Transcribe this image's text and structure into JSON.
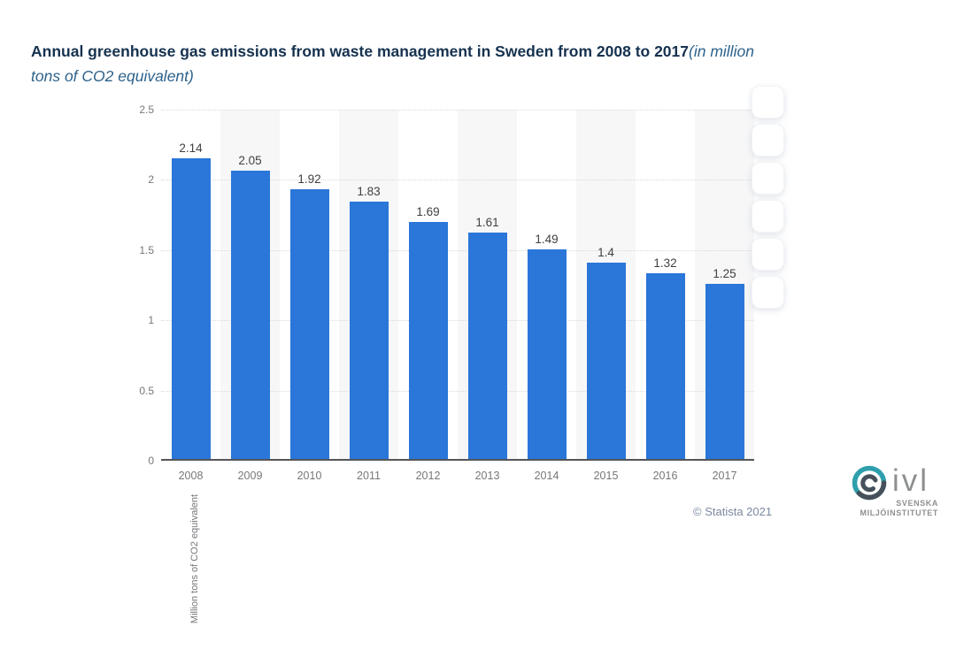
{
  "page": {
    "background": "#ffffff"
  },
  "title": {
    "bold": "Annual greenhouse gas emissions from waste management in Sweden from 2008 to 2017",
    "italic_part1": "(in million",
    "italic_part2": "tons of CO2 equivalent)",
    "italic_full": "(in million tons of CO2 equivalent)"
  },
  "chart_data": {
    "type": "bar",
    "title": "Annual greenhouse gas emissions from waste management in Sweden from 2008 to 2017 (in million tons of CO2 equivalent)",
    "categories": [
      "2008",
      "2009",
      "2010",
      "2011",
      "2012",
      "2013",
      "2014",
      "2015",
      "2016",
      "2017"
    ],
    "values": [
      2.14,
      2.05,
      1.92,
      1.83,
      1.69,
      1.61,
      1.49,
      1.4,
      1.32,
      1.25
    ],
    "value_labels": [
      "2.14",
      "2.05",
      "1.92",
      "1.83",
      "1.69",
      "1.61",
      "1.49",
      "1.4",
      "1.32",
      "1.25"
    ],
    "xlabel": "",
    "ylabel": "Million tons of CO2 equivalent",
    "ylim": [
      0,
      2.5
    ],
    "yticks": [
      0,
      0.5,
      1,
      1.5,
      2,
      2.5
    ],
    "ytick_labels": [
      "0",
      "0.5",
      "1",
      "1.5",
      "2",
      "2.5"
    ],
    "grid": "horizontal-dotted",
    "legend": "none",
    "bar_color": "#2a76d9",
    "plot_band_color": "#f7f7f8",
    "plot_bands": "alternating light bands behind every second category starting with 2009"
  },
  "footer": {
    "copyright": "© Statista 2021"
  },
  "logo": {
    "brand": "ivl",
    "subtitle_line1": "SVENSKA",
    "subtitle_line2": "MILJÖINSTITUTET",
    "teal": "#2f9fad",
    "dark": "#46505a",
    "gray": "#8d9091"
  },
  "colors": {
    "title_bold": "#16324f",
    "title_italic": "#2d628c",
    "axis_text": "#76777a",
    "value_label": "#3e3f41",
    "gridline": "#d9d9dc",
    "baseline": "#55565a",
    "credit": "#7b89a2"
  }
}
